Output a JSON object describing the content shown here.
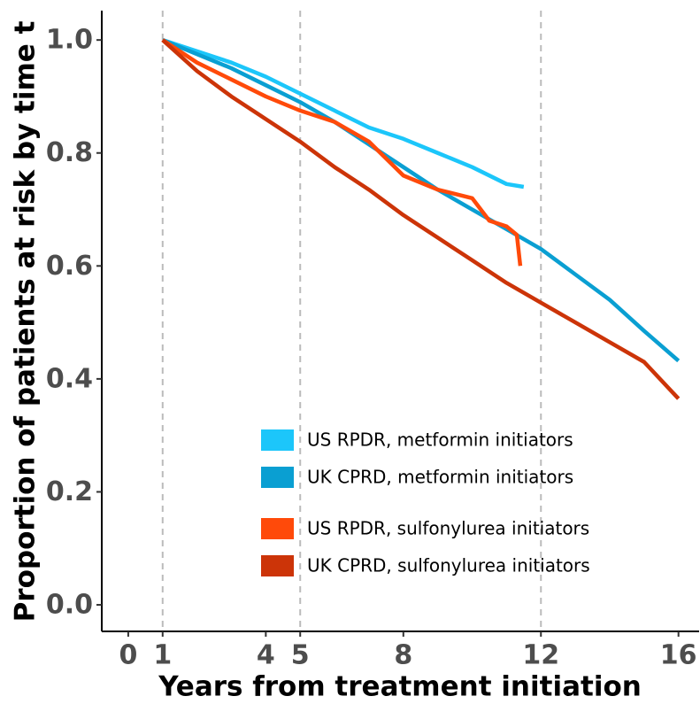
{
  "chart_data": {
    "type": "line",
    "xlabel": "Years from treatment initiation",
    "ylabel": "Proportion of patients at risk by time t",
    "xlim": [
      -0.77,
      16.6
    ],
    "ylim": [
      -0.047,
      1.052
    ],
    "xticks": [
      0,
      1,
      4,
      5,
      8,
      12,
      16
    ],
    "yticks": [
      {
        "value": 0,
        "label": "0.0"
      },
      {
        "value": 0.2,
        "label": "0.2"
      },
      {
        "value": 0.4,
        "label": "0.4"
      },
      {
        "value": 0.6,
        "label": "0.6"
      },
      {
        "value": 0.8,
        "label": "0.8"
      },
      {
        "value": 1,
        "label": "1.0"
      }
    ],
    "vlines": [
      1,
      5,
      12
    ],
    "legend": "inside-bottom-right",
    "series": [
      {
        "name": "US RPDR, metformin initiators",
        "color": "#1cc6fa",
        "x": [
          1,
          2,
          3,
          4,
          5,
          6,
          7,
          8,
          9,
          10,
          11,
          11.5
        ],
        "values": [
          1.0,
          0.98,
          0.96,
          0.935,
          0.905,
          0.875,
          0.845,
          0.825,
          0.8,
          0.775,
          0.745,
          0.74
        ]
      },
      {
        "name": "UK CPRD, metformin initiators",
        "color": "#0a9fd2",
        "x": [
          1,
          2,
          3,
          4,
          5,
          6,
          7,
          8,
          9,
          10,
          11,
          12,
          13,
          14,
          15,
          16
        ],
        "values": [
          1.0,
          0.975,
          0.95,
          0.92,
          0.89,
          0.855,
          0.815,
          0.775,
          0.735,
          0.7,
          0.665,
          0.63,
          0.585,
          0.54,
          0.485,
          0.432
        ]
      },
      {
        "name": "US RPDR, sulfonylurea initiators",
        "color": "#ff4a0a",
        "x": [
          1,
          2,
          3,
          4,
          5,
          6,
          7,
          8,
          9,
          10,
          10.5,
          11,
          11.3,
          11.4
        ],
        "values": [
          1.0,
          0.96,
          0.93,
          0.9,
          0.875,
          0.855,
          0.82,
          0.76,
          0.735,
          0.72,
          0.68,
          0.67,
          0.655,
          0.6
        ]
      },
      {
        "name": "UK CPRD, sulfonylurea initiators",
        "color": "#cc3408",
        "x": [
          1,
          2,
          3,
          4,
          5,
          6,
          7,
          8,
          9,
          10,
          11,
          12,
          13,
          14,
          15,
          16
        ],
        "values": [
          1.0,
          0.945,
          0.9,
          0.86,
          0.82,
          0.775,
          0.735,
          0.69,
          0.65,
          0.61,
          0.57,
          0.535,
          0.5,
          0.465,
          0.43,
          0.365
        ]
      }
    ]
  }
}
